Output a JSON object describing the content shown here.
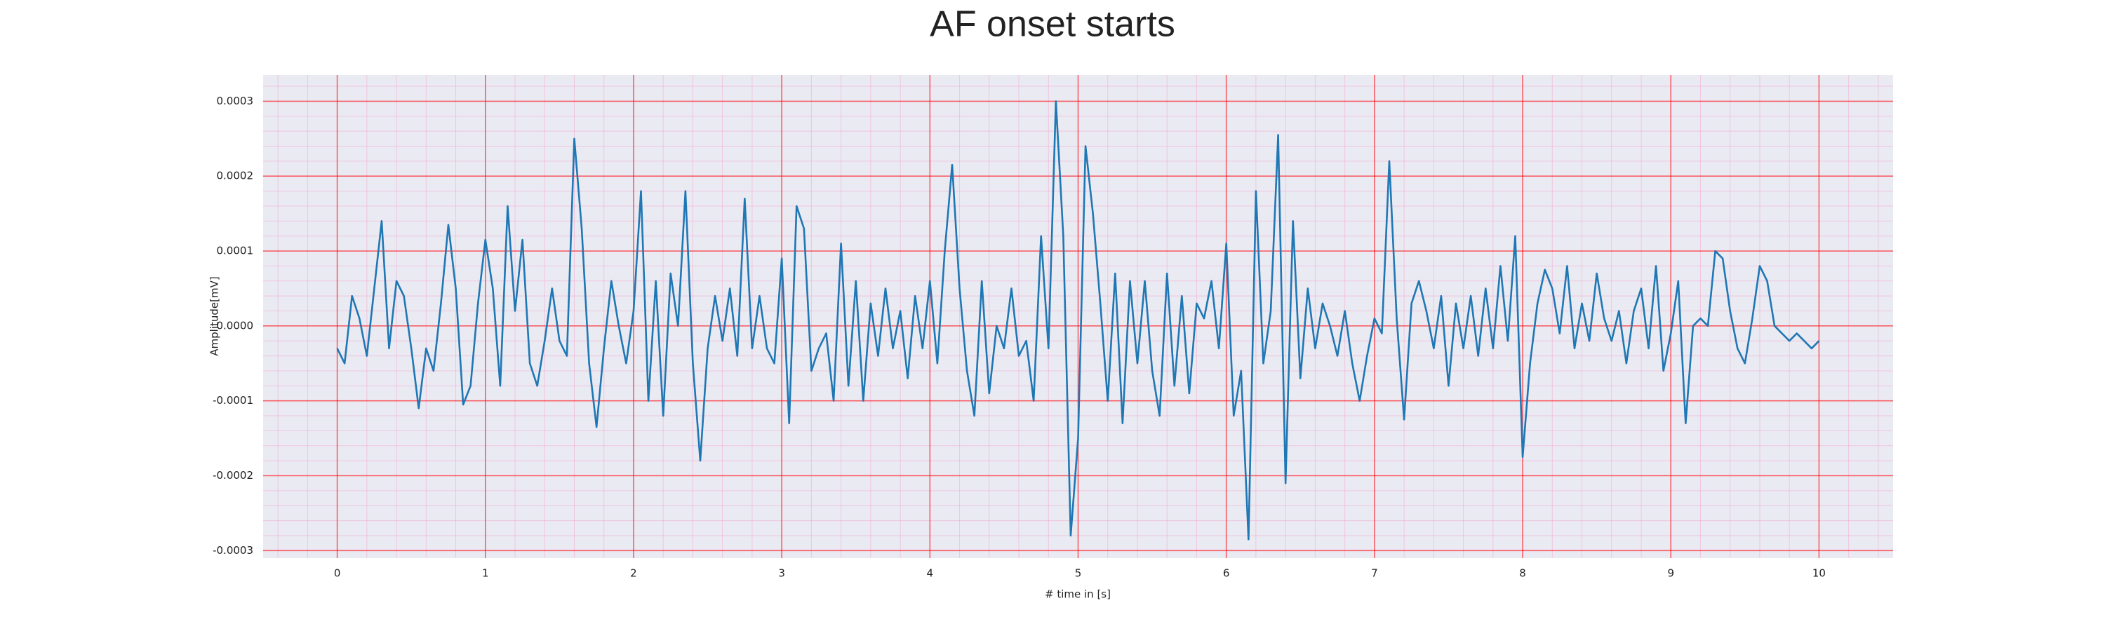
{
  "chart_data": {
    "type": "line",
    "title": "AF onset starts",
    "xlabel": "# time in [s]",
    "ylabel": "Amplitude[mV]",
    "color": "#1f77b4",
    "grid": true,
    "xlim": [
      -0.5,
      10.5
    ],
    "xticks": [
      0,
      1,
      2,
      3,
      4,
      5,
      6,
      7,
      8,
      9,
      10
    ],
    "ylim": [
      -0.00031,
      0.000335
    ],
    "yticks": [
      -0.0003,
      -0.0002,
      -0.0001,
      {
        "value": 0,
        "label": "0.0000"
      },
      0.0001,
      0.0002,
      0.0003
    ],
    "x": [
      0,
      0.05,
      0.1,
      0.15,
      0.2,
      0.25,
      0.3,
      0.35,
      0.4,
      0.45,
      0.5,
      0.55,
      0.6,
      0.65,
      0.7,
      0.75,
      0.8,
      0.85,
      0.9,
      0.95,
      1,
      1.05,
      1.1,
      1.15,
      1.2,
      1.25,
      1.3,
      1.35,
      1.4,
      1.45,
      1.5,
      1.55,
      1.6,
      1.65,
      1.7,
      1.75,
      1.8,
      1.85,
      1.9,
      1.95,
      2,
      2.05,
      2.1,
      2.15,
      2.2,
      2.25,
      2.3,
      2.35,
      2.4,
      2.45,
      2.5,
      2.55,
      2.6,
      2.65,
      2.7,
      2.75,
      2.8,
      2.85,
      2.9,
      2.95,
      3,
      3.05,
      3.1,
      3.15,
      3.2,
      3.25,
      3.3,
      3.35,
      3.4,
      3.45,
      3.5,
      3.55,
      3.6,
      3.65,
      3.7,
      3.75,
      3.8,
      3.85,
      3.9,
      3.95,
      4,
      4.05,
      4.1,
      4.15,
      4.2,
      4.25,
      4.3,
      4.35,
      4.4,
      4.45,
      4.5,
      4.55,
      4.6,
      4.65,
      4.7,
      4.75,
      4.8,
      4.85,
      4.9,
      4.95,
      5,
      5.05,
      5.1,
      5.15,
      5.2,
      5.25,
      5.3,
      5.35,
      5.4,
      5.45,
      5.5,
      5.55,
      5.6,
      5.65,
      5.7,
      5.75,
      5.8,
      5.85,
      5.9,
      5.95,
      6,
      6.05,
      6.1,
      6.15,
      6.2,
      6.25,
      6.3,
      6.35,
      6.4,
      6.45,
      6.5,
      6.55,
      6.6,
      6.65,
      6.7,
      6.75,
      6.8,
      6.85,
      6.9,
      6.95,
      7,
      7.05,
      7.1,
      7.15,
      7.2,
      7.25,
      7.3,
      7.35,
      7.4,
      7.45,
      7.5,
      7.55,
      7.6,
      7.65,
      7.7,
      7.75,
      7.8,
      7.85,
      7.9,
      7.95,
      8,
      8.05,
      8.1,
      8.15,
      8.2,
      8.25,
      8.3,
      8.35,
      8.4,
      8.45,
      8.5,
      8.55,
      8.6,
      8.65,
      8.7,
      8.75,
      8.8,
      8.85,
      8.9,
      8.95,
      9,
      9.05,
      9.1,
      9.15,
      9.2,
      9.25,
      9.3,
      9.35,
      9.4,
      9.45,
      9.5,
      9.55,
      9.6,
      9.65,
      9.7,
      9.75,
      9.8,
      9.85,
      9.9,
      9.95,
      10
    ],
    "values": [
      -3e-05,
      -5e-05,
      4e-05,
      1e-05,
      -4e-05,
      5e-05,
      0.00014,
      -3e-05,
      6e-05,
      4e-05,
      -3e-05,
      -0.00011,
      -3e-05,
      -6e-05,
      3e-05,
      0.000135,
      5e-05,
      -0.000105,
      -8e-05,
      3e-05,
      0.000115,
      5e-05,
      -8e-05,
      0.00016,
      2e-05,
      0.000115,
      -5e-05,
      -8e-05,
      -2e-05,
      5e-05,
      -2e-05,
      -4e-05,
      0.00025,
      0.00013,
      -5e-05,
      -0.000135,
      -3e-05,
      6e-05,
      0,
      -5e-05,
      2e-05,
      0.00018,
      -0.0001,
      6e-05,
      -0.00012,
      7e-05,
      0,
      0.00018,
      -5e-05,
      -0.00018,
      -3e-05,
      4e-05,
      -2e-05,
      5e-05,
      -4e-05,
      0.00017,
      -3e-05,
      4e-05,
      -3e-05,
      -5e-05,
      9e-05,
      -0.00013,
      0.00016,
      0.00013,
      -6e-05,
      -3e-05,
      -1e-05,
      -0.0001,
      0.00011,
      -8e-05,
      6e-05,
      -0.0001,
      3e-05,
      -4e-05,
      5e-05,
      -3e-05,
      2e-05,
      -7e-05,
      4e-05,
      -3e-05,
      6e-05,
      -5e-05,
      0.0001,
      0.000215,
      5e-05,
      -6e-05,
      -0.00012,
      6e-05,
      -9e-05,
      0,
      -3e-05,
      5e-05,
      -4e-05,
      -2e-05,
      -0.0001,
      0.00012,
      -3e-05,
      0.0003,
      0.00012,
      -0.00028,
      -0.00015,
      0.00024,
      0.00015,
      3e-05,
      -0.0001,
      7e-05,
      -0.00013,
      6e-05,
      -5e-05,
      6e-05,
      -6e-05,
      -0.00012,
      7e-05,
      -8e-05,
      4e-05,
      -9e-05,
      3e-05,
      1e-05,
      6e-05,
      -3e-05,
      0.00011,
      -0.00012,
      -6e-05,
      -0.000285,
      0.00018,
      -5e-05,
      2e-05,
      0.000255,
      -0.00021,
      0.00014,
      -7e-05,
      5e-05,
      -3e-05,
      3e-05,
      0,
      -4e-05,
      2e-05,
      -5e-05,
      -0.0001,
      -4e-05,
      1e-05,
      -1e-05,
      0.00022,
      1e-05,
      -0.000125,
      3e-05,
      6e-05,
      2e-05,
      -3e-05,
      4e-05,
      -8e-05,
      3e-05,
      -3e-05,
      4e-05,
      -4e-05,
      5e-05,
      -3e-05,
      8e-05,
      -2e-05,
      0.00012,
      -0.000175,
      -5e-05,
      3e-05,
      7.5e-05,
      5e-05,
      -1e-05,
      8e-05,
      -3e-05,
      3e-05,
      -2e-05,
      7e-05,
      1e-05,
      -2e-05,
      2e-05,
      -5e-05,
      2e-05,
      5e-05,
      -3e-05,
      8e-05,
      -6e-05,
      -1e-05,
      6e-05,
      -0.00013,
      0,
      1e-05,
      0,
      0.0001,
      9e-05,
      2e-05,
      -3e-05,
      -5e-05,
      1e-05,
      8e-05,
      6e-05,
      0,
      -1e-05,
      -2e-05,
      -1e-05,
      -2e-05,
      -3e-05,
      -2e-05
    ]
  }
}
